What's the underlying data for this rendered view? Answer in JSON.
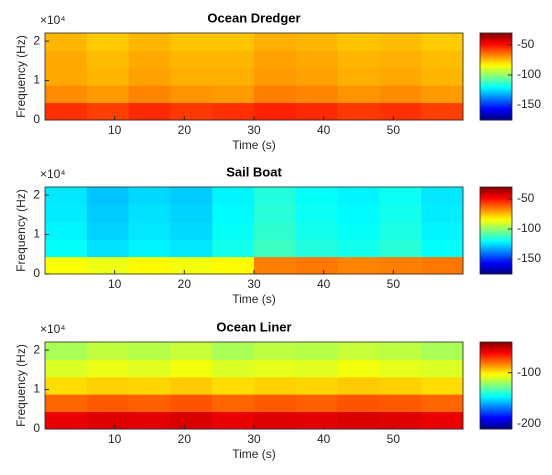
{
  "chart_data": [
    {
      "type": "heatmap",
      "title": "Ocean Dredger",
      "xlabel": "Time (s)",
      "ylabel": "Frequency (Hz)",
      "y_exponent_label": "×10⁴",
      "colormap": "jet",
      "x": [
        3,
        9,
        15,
        21,
        27,
        33,
        39,
        45,
        51,
        57
      ],
      "y": [
        2205,
        6615,
        11025,
        15435,
        19845
      ],
      "z": [
        [
          -55,
          -57,
          -54,
          -56,
          -55,
          -53,
          -54,
          -56,
          -55,
          -57
        ],
        [
          -68,
          -70,
          -67,
          -69,
          -70,
          -66,
          -67,
          -69,
          -68,
          -70
        ],
        [
          -72,
          -74,
          -71,
          -73,
          -73,
          -70,
          -71,
          -73,
          -72,
          -74
        ],
        [
          -72,
          -75,
          -72,
          -74,
          -74,
          -71,
          -72,
          -74,
          -73,
          -75
        ],
        [
          -74,
          -77,
          -74,
          -76,
          -76,
          -73,
          -74,
          -76,
          -75,
          -77
        ]
      ],
      "xlim": [
        0,
        60
      ],
      "ylim": [
        0,
        22050
      ],
      "xticks": [
        10,
        20,
        30,
        40,
        50
      ],
      "yticks": [
        0,
        {
          "value": 10000,
          "label": "1"
        },
        {
          "value": 20000,
          "label": "2"
        }
      ],
      "clim": [
        -175,
        -30
      ],
      "cticks": [
        -50,
        -100,
        -150
      ]
    },
    {
      "type": "heatmap",
      "title": "Sail Boat",
      "xlabel": "Time (s)",
      "ylabel": "Frequency (Hz)",
      "y_exponent_label": "×10⁴",
      "colormap": "jet",
      "x": [
        3,
        9,
        15,
        21,
        27,
        33,
        39,
        45,
        51,
        57
      ],
      "y": [
        2205,
        6615,
        11025,
        15435,
        19845
      ],
      "z": [
        [
          -85,
          -87,
          -84,
          -86,
          -84,
          -66,
          -65,
          -67,
          -66,
          -65
        ],
        [
          -120,
          -125,
          -122,
          -124,
          -118,
          -112,
          -116,
          -118,
          -115,
          -120
        ],
        [
          -122,
          -127,
          -124,
          -126,
          -120,
          -114,
          -118,
          -120,
          -117,
          -122
        ],
        [
          -123,
          -128,
          -125,
          -127,
          -121,
          -115,
          -119,
          -121,
          -118,
          -123
        ],
        [
          -124,
          -129,
          -126,
          -128,
          -122,
          -116,
          -120,
          -122,
          -119,
          -124
        ]
      ],
      "xlim": [
        0,
        60
      ],
      "ylim": [
        0,
        22050
      ],
      "xticks": [
        10,
        20,
        30,
        40,
        50
      ],
      "yticks": [
        0,
        {
          "value": 10000,
          "label": "1"
        },
        {
          "value": 20000,
          "label": "2"
        }
      ],
      "clim": [
        -175,
        -30
      ],
      "cticks": [
        -50,
        -100,
        -150
      ]
    },
    {
      "type": "heatmap",
      "title": "Ocean Liner",
      "xlabel": "Time (s)",
      "ylabel": "Frequency (Hz)",
      "y_exponent_label": "×10⁴",
      "colormap": "jet",
      "x": [
        3,
        9,
        15,
        21,
        27,
        33,
        39,
        45,
        51,
        57
      ],
      "y": [
        2205,
        6615,
        11025,
        15435,
        19845
      ],
      "z": [
        [
          -58,
          -56,
          -57,
          -55,
          -58,
          -56,
          -57,
          -55,
          -56,
          -58
        ],
        [
          -78,
          -76,
          -77,
          -75,
          -78,
          -76,
          -77,
          -75,
          -76,
          -78
        ],
        [
          -98,
          -96,
          -97,
          -95,
          -98,
          -96,
          -97,
          -95,
          -96,
          -98
        ],
        [
          -110,
          -107,
          -109,
          -106,
          -110,
          -108,
          -109,
          -106,
          -108,
          -110
        ],
        [
          -118,
          -114,
          -116,
          -113,
          -118,
          -115,
          -116,
          -113,
          -115,
          -118
        ]
      ],
      "xlim": [
        0,
        60
      ],
      "ylim": [
        0,
        22050
      ],
      "xticks": [
        10,
        20,
        30,
        40,
        50
      ],
      "yticks": [
        0,
        {
          "value": 10000,
          "label": "1"
        },
        {
          "value": 20000,
          "label": "2"
        }
      ],
      "clim": [
        -210,
        -40
      ],
      "cticks": [
        -100,
        -200
      ]
    }
  ]
}
